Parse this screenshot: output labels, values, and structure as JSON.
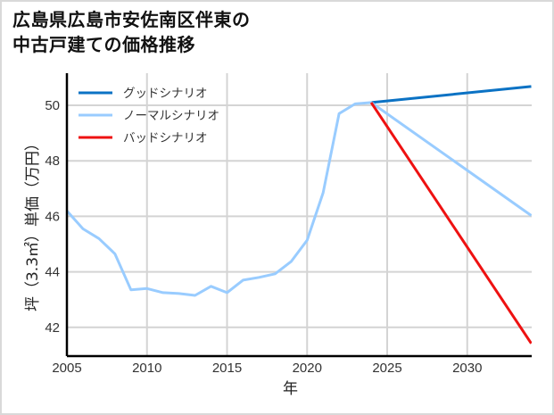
{
  "title_lines": [
    "広島県広島市安佐南区伴東の",
    "中古戸建ての価格推移"
  ],
  "chart_data": {
    "type": "line",
    "title": "広島県広島市安佐南区伴東の中古戸建ての価格推移",
    "xlabel": "年",
    "ylabel": "坪（3.3㎡）単価（万円）",
    "xlim": [
      2005,
      2034
    ],
    "ylim": [
      41,
      51.2
    ],
    "xticks": [
      2005,
      2010,
      2015,
      2020,
      2025,
      2030
    ],
    "yticks": [
      42,
      44,
      46,
      48,
      50
    ],
    "grid": true,
    "legend_position": "upper left",
    "series": [
      {
        "name": "グッドシナリオ",
        "color": "#0b72c4",
        "x": [
          2024,
          2034
        ],
        "values": [
          50.1,
          50.68
        ]
      },
      {
        "name": "ノーマルシナリオ",
        "color": "#99ccff",
        "x": [
          2005,
          2006,
          2007,
          2008,
          2009,
          2010,
          2011,
          2012,
          2013,
          2014,
          2015,
          2016,
          2017,
          2018,
          2019,
          2020,
          2021,
          2022,
          2023,
          2024,
          2034
        ],
        "values": [
          46.2,
          45.55,
          45.2,
          44.65,
          43.35,
          43.4,
          43.25,
          43.22,
          43.15,
          43.48,
          43.25,
          43.7,
          43.8,
          43.93,
          44.37,
          45.14,
          46.85,
          49.7,
          50.05,
          50.1,
          46.03
        ]
      },
      {
        "name": "バッドシナリオ",
        "color": "#ee1111",
        "x": [
          2024,
          2034
        ],
        "values": [
          50.1,
          41.42
        ]
      }
    ]
  }
}
